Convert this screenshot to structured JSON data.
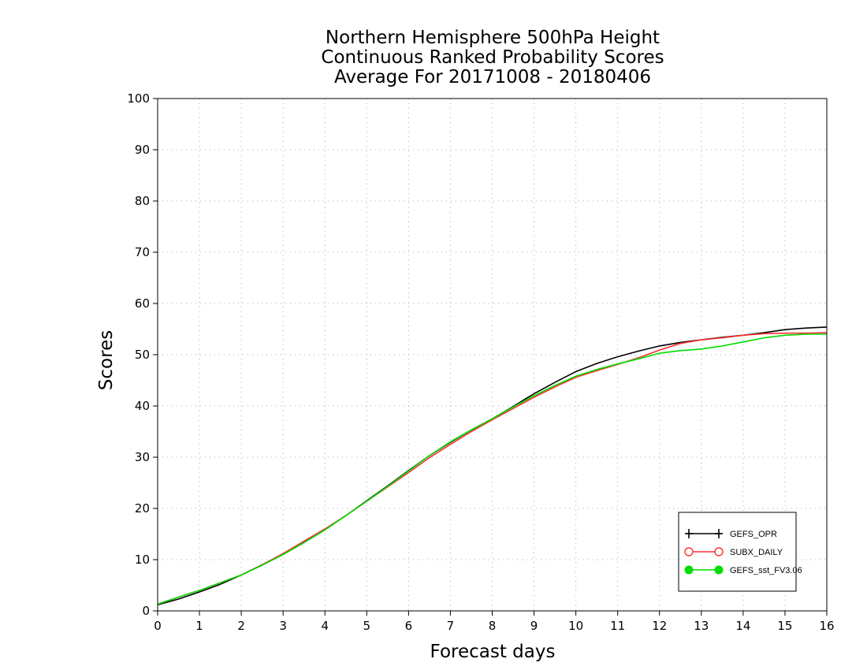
{
  "chart_data": {
    "type": "line",
    "title": [
      "Northern Hemisphere 500hPa Height",
      "Continuous Ranked Probability Scores",
      "Average For 20171008 - 20180406"
    ],
    "xlabel": "Forecast days",
    "ylabel": "Scores",
    "xlim": [
      0,
      16
    ],
    "ylim": [
      0,
      100
    ],
    "x_ticks": [
      "0",
      "1",
      "2",
      "3",
      "4",
      "5",
      "6",
      "7",
      "8",
      "9",
      "10",
      "11",
      "12",
      "13",
      "14",
      "15",
      "16"
    ],
    "y_ticks": [
      "0",
      "10",
      "20",
      "30",
      "40",
      "50",
      "60",
      "70",
      "80",
      "90",
      "100"
    ],
    "grid": true,
    "legend_position": "bottom-right",
    "x": [
      0,
      0.5,
      1,
      1.5,
      2,
      2.5,
      3,
      3.5,
      4,
      4.5,
      5,
      5.5,
      6,
      6.5,
      7,
      7.5,
      8,
      8.5,
      9,
      9.5,
      10,
      10.5,
      11,
      11.5,
      12,
      12.5,
      13,
      13.5,
      14,
      14.5,
      15,
      15.5,
      16
    ],
    "series": [
      {
        "name": "GEFS_OPR",
        "color": "#000000",
        "marker": "plus",
        "values": [
          1.2,
          2.3,
          3.7,
          5.2,
          7.0,
          9.0,
          11.1,
          13.4,
          15.9,
          18.6,
          21.5,
          24.4,
          27.4,
          30.3,
          32.9,
          35.3,
          37.5,
          39.9,
          42.4,
          44.6,
          46.7,
          48.3,
          49.6,
          50.7,
          51.7,
          52.4,
          52.9,
          53.4,
          53.8,
          54.3,
          54.9,
          55.2,
          55.4
        ]
      },
      {
        "name": "SUBX_DAILY",
        "color": "#ff3030",
        "marker": "circle-open",
        "values": [
          1.3,
          2.7,
          4.0,
          5.5,
          7.0,
          9.0,
          11.2,
          13.6,
          16.0,
          18.6,
          21.4,
          24.2,
          27.0,
          29.9,
          32.5,
          35.0,
          37.3,
          39.5,
          41.7,
          43.7,
          45.6,
          46.9,
          48.1,
          49.4,
          50.9,
          52.2,
          52.9,
          53.3,
          53.8,
          54.1,
          54.2,
          54.2,
          54.3
        ]
      },
      {
        "name": "GEFS_sst_FV3.06",
        "color": "#00dd00",
        "marker": "circle-filled",
        "values": [
          1.3,
          2.7,
          4.0,
          5.5,
          7.0,
          8.9,
          11.0,
          13.3,
          15.8,
          18.6,
          21.4,
          24.3,
          27.3,
          30.3,
          33.0,
          35.3,
          37.5,
          39.8,
          42.0,
          44.0,
          45.8,
          47.1,
          48.2,
          49.2,
          50.3,
          50.8,
          51.1,
          51.7,
          52.5,
          53.3,
          53.8,
          54.0,
          54.0
        ]
      }
    ]
  }
}
